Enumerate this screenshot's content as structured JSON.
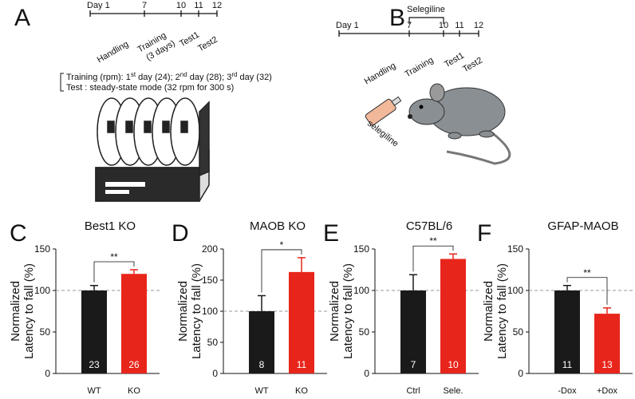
{
  "panels": {
    "letters": [
      "A",
      "B",
      "C",
      "D",
      "E",
      "F"
    ]
  },
  "timeline_a": {
    "ticks": [
      "Day 1",
      "7",
      "10",
      "11",
      "12"
    ],
    "phases": [
      "Handling",
      "Training",
      "(3 days)",
      "Test1",
      "Test2"
    ],
    "note_1": [
      "Training (rpm): 1",
      "st",
      " day (24); 2",
      "nd",
      " day (28); 3",
      "rd",
      " day (32)"
    ],
    "note_2": "Test : steady-state mode (32 rpm for 300 s)"
  },
  "timeline_b": {
    "ticks": [
      "Day 1",
      "7",
      "10",
      "11",
      "12"
    ],
    "bracket": "Selegiline",
    "phases": [
      "Handling",
      "Training",
      "Test1",
      "Test2"
    ],
    "syringe": "selegiline"
  },
  "chart_data": [
    {
      "type": "bar",
      "title": "Best1 KO",
      "ylabel": [
        "Normalized",
        "Latency to fall (%)"
      ],
      "categories": [
        "WT",
        "KO"
      ],
      "values": [
        100,
        120
      ],
      "errors": [
        6,
        5
      ],
      "n": [
        23,
        26
      ],
      "colors": [
        "#1a1a1a",
        "#e8251b"
      ],
      "ylim": [
        0,
        150
      ],
      "yticks": [
        0,
        50,
        100,
        150
      ],
      "refline": 100,
      "significance": "**"
    },
    {
      "type": "bar",
      "title": "MAOB KO",
      "ylabel": [
        "Normalized",
        "Latency to fall (%)"
      ],
      "categories": [
        "WT",
        "KO"
      ],
      "values": [
        100,
        163
      ],
      "errors": [
        25,
        23
      ],
      "n": [
        8,
        11
      ],
      "colors": [
        "#1a1a1a",
        "#e8251b"
      ],
      "ylim": [
        0,
        200
      ],
      "yticks": [
        0,
        50,
        100,
        150,
        200
      ],
      "refline": 100,
      "significance": "*"
    },
    {
      "type": "bar",
      "title": "C57BL/6",
      "ylabel": [
        "Normalized",
        "Latency to fall (%)"
      ],
      "categories": [
        "Ctrl",
        "Sele."
      ],
      "values": [
        100,
        138
      ],
      "errors": [
        19,
        6
      ],
      "n": [
        7,
        10
      ],
      "colors": [
        "#1a1a1a",
        "#e8251b"
      ],
      "ylim": [
        0,
        150
      ],
      "yticks": [
        0,
        50,
        100,
        150
      ],
      "refline": 100,
      "significance": "**"
    },
    {
      "type": "bar",
      "title": "GFAP-MAOB",
      "ylabel": [
        "Normalized",
        "Latency to fall (%)"
      ],
      "categories": [
        "-Dox",
        "+Dox"
      ],
      "values": [
        100,
        72
      ],
      "errors": [
        6,
        7
      ],
      "n": [
        11,
        13
      ],
      "colors": [
        "#1a1a1a",
        "#e8251b"
      ],
      "ylim": [
        0,
        150
      ],
      "yticks": [
        0,
        50,
        100,
        150
      ],
      "refline": 100,
      "significance": "**"
    }
  ]
}
